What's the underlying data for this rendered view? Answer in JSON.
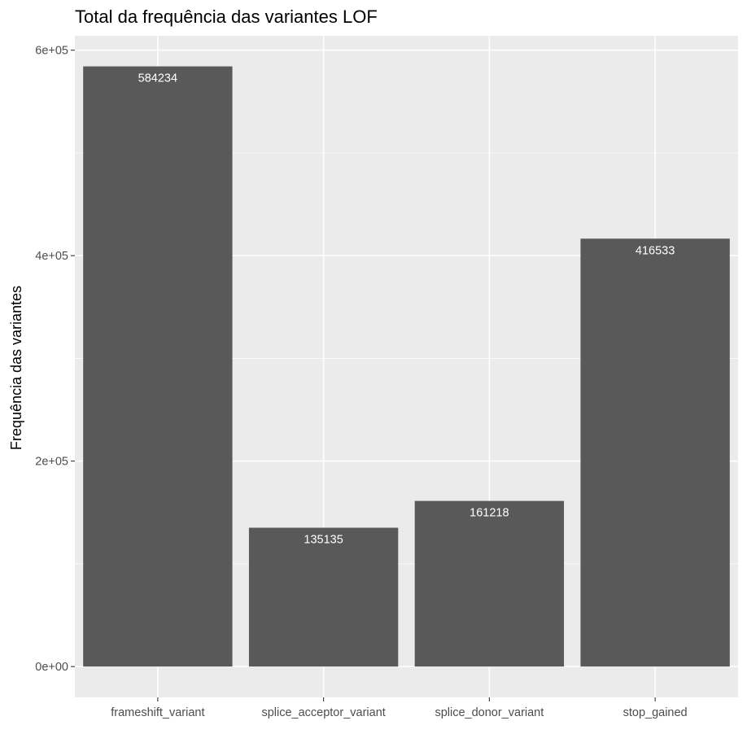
{
  "chart_data": {
    "type": "bar",
    "title": "Total da frequência das variantes LOF",
    "xlabel": "",
    "ylabel": "Frequência das variantes",
    "categories": [
      "frameshift_variant",
      "splice_acceptor_variant",
      "splice_donor_variant",
      "stop_gained"
    ],
    "values": [
      584234,
      135135,
      161218,
      416533
    ],
    "data_labels": [
      "584234",
      "135135",
      "161218",
      "416533"
    ],
    "ylim": [
      -30000,
      614000
    ],
    "y_ticks": [
      0,
      200000,
      400000,
      600000
    ],
    "y_tick_labels": [
      "0e+00",
      "2e+05",
      "4e+05",
      "6e+05"
    ],
    "grid": true,
    "legend": "none",
    "colors": {
      "panel_background": "#ebebeb",
      "grid_major": "#ffffff",
      "bar_fill": "#595959",
      "bar_label": "#ffffff",
      "tick_text": "#4d4d4d",
      "tick_mark": "#333333"
    }
  }
}
